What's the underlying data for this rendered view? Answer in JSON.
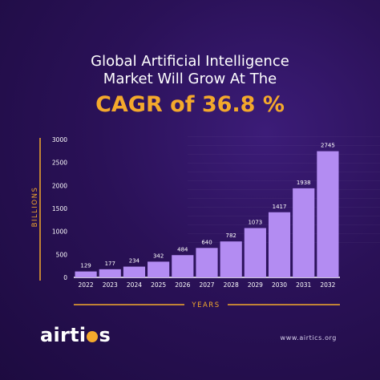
{
  "headline": {
    "line1": "Global Artificial Intelligence",
    "line2": "Market Will Grow At The",
    "highlight": "CAGR of 36.8 %"
  },
  "brand": {
    "logo_text_before": "airti",
    "logo_text_after": "s",
    "website": "www.airtics.org"
  },
  "colors": {
    "background": "#2a1157",
    "accent": "#f4a92c",
    "bar": "#b38cf2",
    "axis": "#ffffff"
  },
  "chart_data": {
    "type": "bar",
    "categories": [
      "2022",
      "2023",
      "2024",
      "2025",
      "2026",
      "2027",
      "2028",
      "2029",
      "2030",
      "2031",
      "2032"
    ],
    "values": [
      129,
      177,
      234,
      342,
      484,
      640,
      782,
      1073,
      1417,
      1938,
      2745
    ],
    "data_labels": [
      "129",
      "177",
      "234",
      "342",
      "484",
      "640",
      "782",
      "1073",
      "1417",
      "1938",
      "2745"
    ],
    "xlabel": "YEARS",
    "ylabel": "BILLIONS",
    "ylim": [
      0,
      3000
    ],
    "yticks": [
      0,
      500,
      1000,
      1500,
      2000,
      2500,
      3000
    ],
    "grid": false
  }
}
